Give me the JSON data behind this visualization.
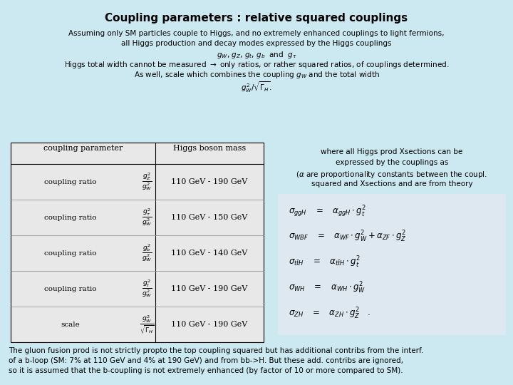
{
  "bg_color": "#cce8f0",
  "title": "Coupling parameters : relative squared couplings",
  "title_fontsize": 11,
  "subtitle_lines": [
    "Assuming only SM particles couple to Higgs, and no extremely enhanced couplings to light fermions,",
    "all Higgs production and decay modes expressed by the Higgs couplings",
    "$g_W$, $g_Z$, $g_t$, $g_b$  and  $g_\\tau$",
    "Higgs total width cannot be measured $\\rightarrow$ only ratios, or rather squared ratios, of couplings determined.",
    "As well, scale which combines the coupling $g_W$ and the total width",
    "$g^2_W/\\sqrt{\\Gamma_H}$."
  ],
  "table_header": [
    "coupling parameter",
    "Higgs boson mass"
  ],
  "table_rows": [
    [
      "coupling ratio",
      "$\\frac{g_Z^2}{g_W^2}$",
      "110 GeV - 190 GeV"
    ],
    [
      "coupling ratio",
      "$\\frac{g_\\tau^2}{g_W^2}$",
      "110 GeV - 150 GeV"
    ],
    [
      "coupling ratio",
      "$\\frac{g_b^2}{g_W^2}$",
      "110 GeV - 140 GeV"
    ],
    [
      "coupling ratio",
      "$\\frac{g_t^2}{g_W^2}$",
      "110 GeV - 190 GeV"
    ],
    [
      "scale",
      "$\\frac{g_W^2}{\\sqrt{\\Gamma_H}}$",
      "110 GeV - 190 GeV"
    ]
  ],
  "right_text_lines": [
    "where all Higgs prod Xsections can be",
    "expressed by the couplings as",
    "($\\alpha$ are proportionality constants between the coupl.",
    "squared and Xsections and are from theory"
  ],
  "equations": [
    "$\\sigma_{ggH}\\quad = \\quad \\alpha_{ggH} \\cdot g_t^2$",
    "$\\sigma_{WBF} \\quad = \\quad \\alpha_{WF} \\cdot g_W^2 + \\alpha_{ZF} \\cdot g_Z^2$",
    "$\\sigma_{t\\bar{t}H} \\quad = \\quad \\alpha_{t\\bar{t}H} \\cdot g_t^2$",
    "$\\sigma_{WH} \\quad = \\quad \\alpha_{WH} \\cdot g_W^2$",
    "$\\sigma_{ZH} \\quad = \\quad \\alpha_{ZH} \\cdot g_Z^2 \\quad .$"
  ],
  "footer_lines": [
    "The gluon fusion prod is not strictly propto the top coupling squared but has additional contribs from the interf.",
    "of a b-loop (SM: 7% at 110 GeV and 4% at 190 GeV) and from bb->H. But these add. contribs are ignored,",
    "so it is assumed that the b-coupling is not extremely enhanced (by factor of 10 or more compared to SM)."
  ],
  "font_color": "#000000",
  "table_bg": "#e8e8e8",
  "eq_bg": "#ddeeff",
  "text_fontsize": 7.5,
  "eq_fontsize": 8.5,
  "footer_fontsize": 7.5
}
